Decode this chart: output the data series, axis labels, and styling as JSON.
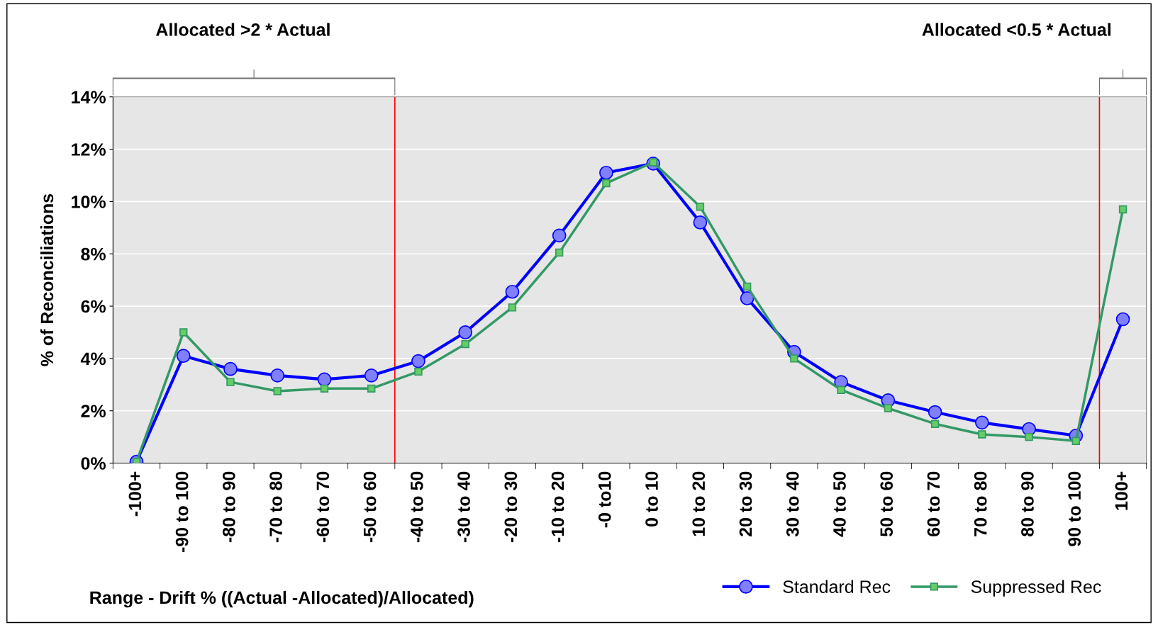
{
  "chart_data": {
    "type": "line",
    "xlabel": "Range - Drift % ((Actual -Allocated)/Allocated)",
    "ylabel": "% of Reconciliations",
    "categories": [
      "-100+",
      "-90 to 100",
      "-80 to 90",
      "-70 to 80",
      "-60 to 70",
      "-50 to 60",
      "-40 to 50",
      "-30 to 40",
      "-20 to 30",
      "-10 to 20",
      "-0 to10",
      "0 to 10",
      "10 to 20",
      "20 to 30",
      "30 to 40",
      "40 to 50",
      "50 to 60",
      "60 to 70",
      "70 to 80",
      "80 to 90",
      "90 to 100",
      "100+"
    ],
    "series": [
      {
        "name": "Standard Rec",
        "color": "#0000ff",
        "marker": "circle",
        "values": [
          0.05,
          4.1,
          3.6,
          3.35,
          3.2,
          3.35,
          3.9,
          5.0,
          6.55,
          8.7,
          11.1,
          11.45,
          9.2,
          6.3,
          4.25,
          3.1,
          2.4,
          1.95,
          1.55,
          1.3,
          1.05,
          5.5
        ]
      },
      {
        "name": "Suppressed Rec",
        "color": "#339966",
        "marker": "square",
        "values": [
          0.05,
          5.0,
          3.1,
          2.75,
          2.85,
          2.85,
          3.5,
          4.55,
          5.95,
          8.05,
          10.7,
          11.5,
          9.8,
          6.75,
          4.0,
          2.8,
          2.1,
          1.5,
          1.1,
          1.0,
          0.85,
          9.7
        ]
      }
    ],
    "ylim": [
      0,
      14
    ],
    "yticks": [
      {
        "value": 0,
        "label": "0%"
      },
      {
        "value": 2,
        "label": "2%"
      },
      {
        "value": 4,
        "label": "4%"
      },
      {
        "value": 6,
        "label": "6%"
      },
      {
        "value": 8,
        "label": "8%"
      },
      {
        "value": 10,
        "label": "10%"
      },
      {
        "value": 12,
        "label": "12%"
      },
      {
        "value": 14,
        "label": "14%"
      }
    ],
    "grid": "y",
    "legend": "bottom right",
    "annotations": [
      "Allocated >2 * Actual",
      "Allocated <0.5 * Actual"
    ]
  }
}
